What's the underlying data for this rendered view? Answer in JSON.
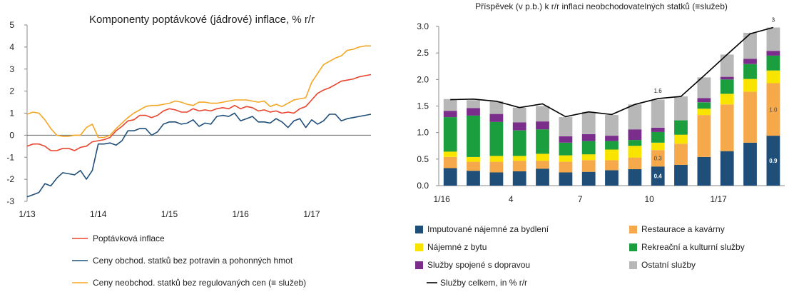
{
  "chart_data": [
    {
      "type": "line",
      "title": "Komponenty poptávkové (jádrové) inflace, % r/r",
      "ylim": [
        -3,
        5
      ],
      "yticks": [
        -3,
        -2,
        -1,
        0,
        1,
        2,
        3,
        4,
        5
      ],
      "xtick_labels": [
        {
          "label": "1/13",
          "index": 0
        },
        {
          "label": "1/14",
          "index": 12
        },
        {
          "label": "1/15",
          "index": 24
        },
        {
          "label": "1/16",
          "index": 36
        },
        {
          "label": "1/17",
          "index": 48
        }
      ],
      "grid": false,
      "legend_position": "bottom",
      "series": [
        {
          "name": "Poptávková inflace",
          "color": "#e8452c",
          "values": [
            -0.5,
            -0.4,
            -0.4,
            -0.5,
            -0.7,
            -0.7,
            -0.6,
            -0.6,
            -0.7,
            -0.55,
            -0.5,
            -0.3,
            -0.25,
            -0.2,
            -0.1,
            0.2,
            0.4,
            0.65,
            0.7,
            0.9,
            0.9,
            0.8,
            0.9,
            1.1,
            1.2,
            1.15,
            1.05,
            1.05,
            1.2,
            1.1,
            1.15,
            1.1,
            1.2,
            1.25,
            1.2,
            1.35,
            1.2,
            1.3,
            1.25,
            1.1,
            1.15,
            1.05,
            1.1,
            1.0,
            1.05,
            1.0,
            1.2,
            1.3,
            1.6,
            1.9,
            2.05,
            2.15,
            2.3,
            2.45,
            2.5,
            2.55,
            2.65,
            2.7,
            2.75
          ]
        },
        {
          "name": "Ceny obchod. statků bez potravin a pohonných hmot",
          "color": "#1f4e79",
          "values": [
            -2.8,
            -2.7,
            -2.6,
            -2.2,
            -2.3,
            -1.95,
            -1.7,
            -1.75,
            -1.8,
            -1.6,
            -2.0,
            -1.6,
            -0.4,
            -0.4,
            -0.35,
            -0.45,
            -0.25,
            0.2,
            0.2,
            0.3,
            0.3,
            0.0,
            0.15,
            0.5,
            0.6,
            0.6,
            0.5,
            0.55,
            0.7,
            0.4,
            0.55,
            0.5,
            0.85,
            0.9,
            0.85,
            1.0,
            0.65,
            0.75,
            0.85,
            0.6,
            0.6,
            0.55,
            0.75,
            0.6,
            0.35,
            0.65,
            0.75,
            0.35,
            0.7,
            0.5,
            0.65,
            0.95,
            0.95,
            0.65,
            0.75,
            0.8,
            0.85,
            0.9,
            0.95
          ]
        },
        {
          "name": "Ceny neobchod. statků bez regulovaných cen  (≡ služeb)",
          "color": "#f5a623",
          "values": [
            0.95,
            1.05,
            1.0,
            0.7,
            0.3,
            0.0,
            -0.05,
            -0.05,
            0.0,
            0.0,
            0.35,
            0.5,
            -0.1,
            -0.1,
            0.0,
            0.3,
            0.55,
            0.8,
            1.0,
            1.15,
            1.3,
            1.35,
            1.35,
            1.4,
            1.45,
            1.55,
            1.5,
            1.4,
            1.35,
            1.5,
            1.5,
            1.45,
            1.45,
            1.5,
            1.55,
            1.6,
            1.6,
            1.6,
            1.55,
            1.5,
            1.55,
            1.3,
            1.4,
            1.3,
            1.45,
            1.6,
            1.65,
            1.7,
            2.4,
            2.8,
            3.2,
            3.35,
            3.5,
            3.6,
            3.85,
            3.9,
            4.0,
            4.05,
            4.05
          ]
        }
      ]
    },
    {
      "type": "bar",
      "stacked": true,
      "title": "Příspěvek (v p.b.) k r/r inflaci neobchodovatelných statků (≡služeb)",
      "ylim": [
        0,
        3
      ],
      "yticks": [
        "0.0",
        "0.5",
        "1.0",
        "1.5",
        "2.0",
        "2.5",
        "3.0"
      ],
      "xtick_labels": [
        {
          "label": "1/16",
          "index": 0
        },
        {
          "label": "4",
          "index": 3
        },
        {
          "label": "7",
          "index": 6
        },
        {
          "label": "10",
          "index": 9
        },
        {
          "label": "1/17",
          "index": 12
        }
      ],
      "categories_count": 15,
      "grid": false,
      "legend_position": "bottom",
      "series": [
        {
          "name": "Imputované nájemné za bydlení",
          "color": "#1f4e79",
          "values": [
            0.33,
            0.28,
            0.25,
            0.27,
            0.32,
            0.25,
            0.26,
            0.29,
            0.31,
            0.36,
            0.39,
            0.54,
            0.65,
            0.81,
            0.94
          ]
        },
        {
          "name": "Restaurace a kavárny",
          "color": "#f5a94b",
          "values": [
            0.21,
            0.17,
            0.2,
            0.2,
            0.15,
            0.2,
            0.22,
            0.19,
            0.22,
            0.31,
            0.4,
            0.79,
            0.88,
            0.96,
            0.99
          ]
        },
        {
          "name": "Nájemné z bytu",
          "color": "#f9e400",
          "values": [
            0.1,
            0.09,
            0.11,
            0.09,
            0.13,
            0.12,
            0.11,
            0.2,
            0.22,
            0.14,
            0.17,
            0.12,
            0.2,
            0.24,
            0.24
          ]
        },
        {
          "name": "Rekreační a kulturní služby",
          "color": "#1a9e3e",
          "values": [
            0.65,
            0.78,
            0.64,
            0.48,
            0.46,
            0.24,
            0.25,
            0.16,
            0.11,
            0.2,
            0.27,
            0.12,
            0.27,
            0.28,
            0.28
          ]
        },
        {
          "name": "Služby spojené s dopravou",
          "color": "#7b2d8b",
          "values": [
            0.12,
            0.14,
            0.15,
            0.15,
            0.15,
            0.12,
            0.13,
            0.1,
            0.2,
            0.08,
            0.0,
            0.08,
            0.05,
            0.1,
            0.09
          ]
        },
        {
          "name": "Ostatní služby",
          "color": "#b7b7b7",
          "values": [
            0.22,
            0.15,
            0.24,
            0.28,
            0.29,
            0.36,
            0.42,
            0.39,
            0.47,
            0.53,
            0.45,
            0.39,
            0.42,
            0.49,
            0.44
          ]
        }
      ],
      "total_line": {
        "name": "Služby celkem, in % r/r",
        "color": "#000000",
        "values": [
          1.62,
          1.63,
          1.59,
          1.47,
          1.54,
          1.3,
          1.39,
          1.34,
          1.53,
          1.64,
          1.68,
          2.07,
          2.47,
          2.86,
          2.98
        ]
      },
      "annotations": [
        {
          "text": "1.6",
          "series": "total",
          "index": 9
        },
        {
          "text": "3",
          "series": "total",
          "index": 14
        },
        {
          "text": "0.3",
          "series": "Restaurace a kavárny",
          "index": 9
        },
        {
          "text": "0.4",
          "series": "Imputované nájemné za bydlení",
          "index": 9
        },
        {
          "text": "1.0",
          "series": "Restaurace a kavárny",
          "index": 14
        },
        {
          "text": "0.9",
          "series": "Imputované nájemné za bydlení",
          "index": 14
        }
      ]
    }
  ]
}
